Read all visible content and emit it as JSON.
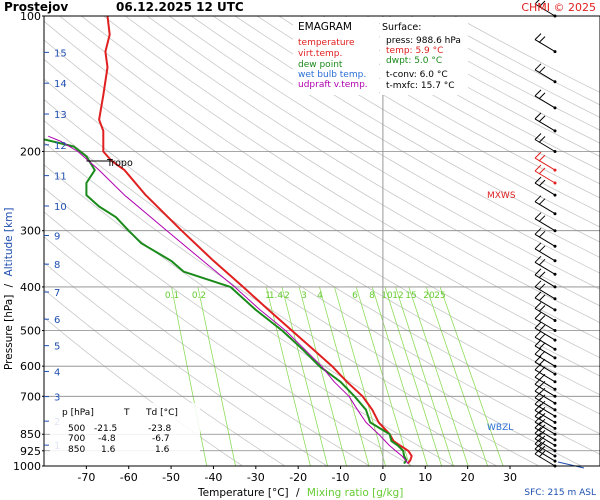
{
  "header": {
    "station": "Prostejov",
    "datetime": "06.12.2025 12 UTC",
    "credit": "CHMI © 2025"
  },
  "legend": {
    "title": "EMAGRAM",
    "items": [
      {
        "label": "temperature",
        "color": "#e02020"
      },
      {
        "label": "virt.temp.",
        "color": "#e02020"
      },
      {
        "label": "dew point",
        "color": "#1a8a1a"
      },
      {
        "label": "wet bulb temp.",
        "color": "#2a6fd6"
      },
      {
        "label": "udpraft v.temp.",
        "color": "#b000b0"
      }
    ]
  },
  "surface": {
    "title": "Surface:",
    "lines": [
      {
        "text": "press: 988.6 hPa",
        "color": "#000000"
      },
      {
        "text": "temp: 5.9 °C",
        "color": "#e02020"
      },
      {
        "text": "dwpt: 5.0 °C",
        "color": "#1a8a1a"
      },
      {
        "text": "t-conv: 6.0 °C",
        "color": "#000000"
      },
      {
        "text": "t-mxfc: 15.7 °C",
        "color": "#000000"
      }
    ]
  },
  "table": {
    "headers": [
      "p [hPa]",
      "T",
      "Td [°C]"
    ],
    "rows": [
      [
        "500",
        "-21.5",
        "-23.8"
      ],
      [
        "700",
        "-4.8",
        "-6.7"
      ],
      [
        "850",
        "1.6",
        "1.6"
      ]
    ]
  },
  "annotations": {
    "tropo": "Tropo",
    "mxws": "MXWS",
    "wbzl": "WBZL",
    "sfc": "SFC: 215 m ASL"
  },
  "axes": {
    "xlabel_main": "Temperature [°C]",
    "xlabel_sep": "/",
    "xlabel_mix": "Mixing ratio [g/kg]",
    "ylabel_main": "Pressure [hPa]",
    "ylabel_sep": "/",
    "ylabel_alt": "Altitude [km]"
  },
  "chart_data": {
    "type": "line",
    "x_ticks": [
      -70,
      -60,
      -50,
      -40,
      -30,
      -20,
      -10,
      0,
      10,
      20,
      30
    ],
    "y_ticks": [
      100,
      200,
      300,
      400,
      500,
      600,
      700,
      850,
      925,
      1000
    ],
    "alt_ticks": [
      1,
      2,
      3,
      4,
      5,
      6,
      7,
      8,
      9,
      10,
      11,
      12,
      13,
      14,
      15
    ],
    "mixing_ratio_labels": [
      "0.1",
      "0.2",
      "1",
      "1.4",
      "2",
      "3",
      "4",
      "6",
      "8",
      "10",
      "12",
      "15",
      "20",
      "25"
    ],
    "xlim": [
      -80,
      30
    ],
    "ylim": [
      1000,
      100
    ],
    "log_pressure": true,
    "series": [
      {
        "name": "temperature",
        "color": "#e02020",
        "points": [
          [
            988,
            5.9
          ],
          [
            970,
            6.5
          ],
          [
            950,
            6.8
          ],
          [
            925,
            6.0
          ],
          [
            900,
            4.0
          ],
          [
            880,
            2.5
          ],
          [
            850,
            1.6
          ],
          [
            800,
            -1.0
          ],
          [
            750,
            -2.5
          ],
          [
            700,
            -4.8
          ],
          [
            650,
            -8.5
          ],
          [
            600,
            -12.0
          ],
          [
            550,
            -16.5
          ],
          [
            500,
            -21.5
          ],
          [
            450,
            -27.0
          ],
          [
            400,
            -33.0
          ],
          [
            350,
            -40.0
          ],
          [
            300,
            -47.5
          ],
          [
            250,
            -56.0
          ],
          [
            220,
            -61.0
          ],
          [
            210,
            -64.0
          ],
          [
            200,
            -66.0
          ],
          [
            180,
            -66.0
          ],
          [
            170,
            -67.0
          ],
          [
            150,
            -66.0
          ],
          [
            130,
            -65.0
          ],
          [
            120,
            -65.5
          ],
          [
            110,
            -64.5
          ],
          [
            100,
            -65.0
          ]
        ]
      },
      {
        "name": "dew point",
        "color": "#1a8a1a",
        "points": [
          [
            988,
            5.0
          ],
          [
            970,
            5.5
          ],
          [
            950,
            5.0
          ],
          [
            925,
            4.8
          ],
          [
            900,
            3.5
          ],
          [
            880,
            2.0
          ],
          [
            850,
            1.6
          ],
          [
            800,
            -3.0
          ],
          [
            750,
            -4.0
          ],
          [
            700,
            -6.7
          ],
          [
            650,
            -10.0
          ],
          [
            600,
            -15.0
          ],
          [
            550,
            -19.0
          ],
          [
            500,
            -23.8
          ],
          [
            450,
            -30.0
          ],
          [
            400,
            -36.0
          ],
          [
            370,
            -47.0
          ],
          [
            350,
            -50.0
          ],
          [
            320,
            -57.0
          ],
          [
            300,
            -60.0
          ],
          [
            280,
            -63.0
          ],
          [
            265,
            -67.0
          ],
          [
            250,
            -70.0
          ],
          [
            235,
            -70.0
          ],
          [
            220,
            -68.0
          ],
          [
            205,
            -70.0
          ],
          [
            195,
            -73.0
          ],
          [
            188,
            -80.0
          ]
        ]
      },
      {
        "name": "udpraft v.temp.",
        "color": "#b000b0",
        "points": [
          [
            988,
            6.0
          ],
          [
            950,
            4.5
          ],
          [
            925,
            3.0
          ],
          [
            900,
            1.5
          ],
          [
            850,
            -1.0
          ],
          [
            800,
            -4.0
          ],
          [
            750,
            -6.0
          ],
          [
            700,
            -8.0
          ],
          [
            650,
            -11.5
          ],
          [
            600,
            -14.5
          ],
          [
            550,
            -18.5
          ],
          [
            500,
            -23.0
          ],
          [
            450,
            -29.0
          ],
          [
            400,
            -35.0
          ],
          [
            350,
            -42.5
          ],
          [
            300,
            -51.0
          ],
          [
            250,
            -61.0
          ],
          [
            220,
            -67.0
          ],
          [
            200,
            -72.0
          ],
          [
            190,
            -76.0
          ],
          [
            185,
            -79.0
          ]
        ]
      }
    ],
    "wind_levels": [
      1000,
      975,
      950,
      925,
      900,
      875,
      850,
      825,
      800,
      775,
      750,
      725,
      700,
      675,
      650,
      625,
      600,
      575,
      550,
      525,
      500,
      475,
      450,
      425,
      400,
      375,
      350,
      325,
      300,
      275,
      250,
      235,
      220,
      200,
      180,
      160,
      140,
      120,
      100
    ],
    "colors": {
      "isobar": "#888888",
      "dry_adiabat": "#c8c8c8",
      "mixing_ratio": "#8fdc5a",
      "altitude_label": "#1f4fb0"
    }
  }
}
